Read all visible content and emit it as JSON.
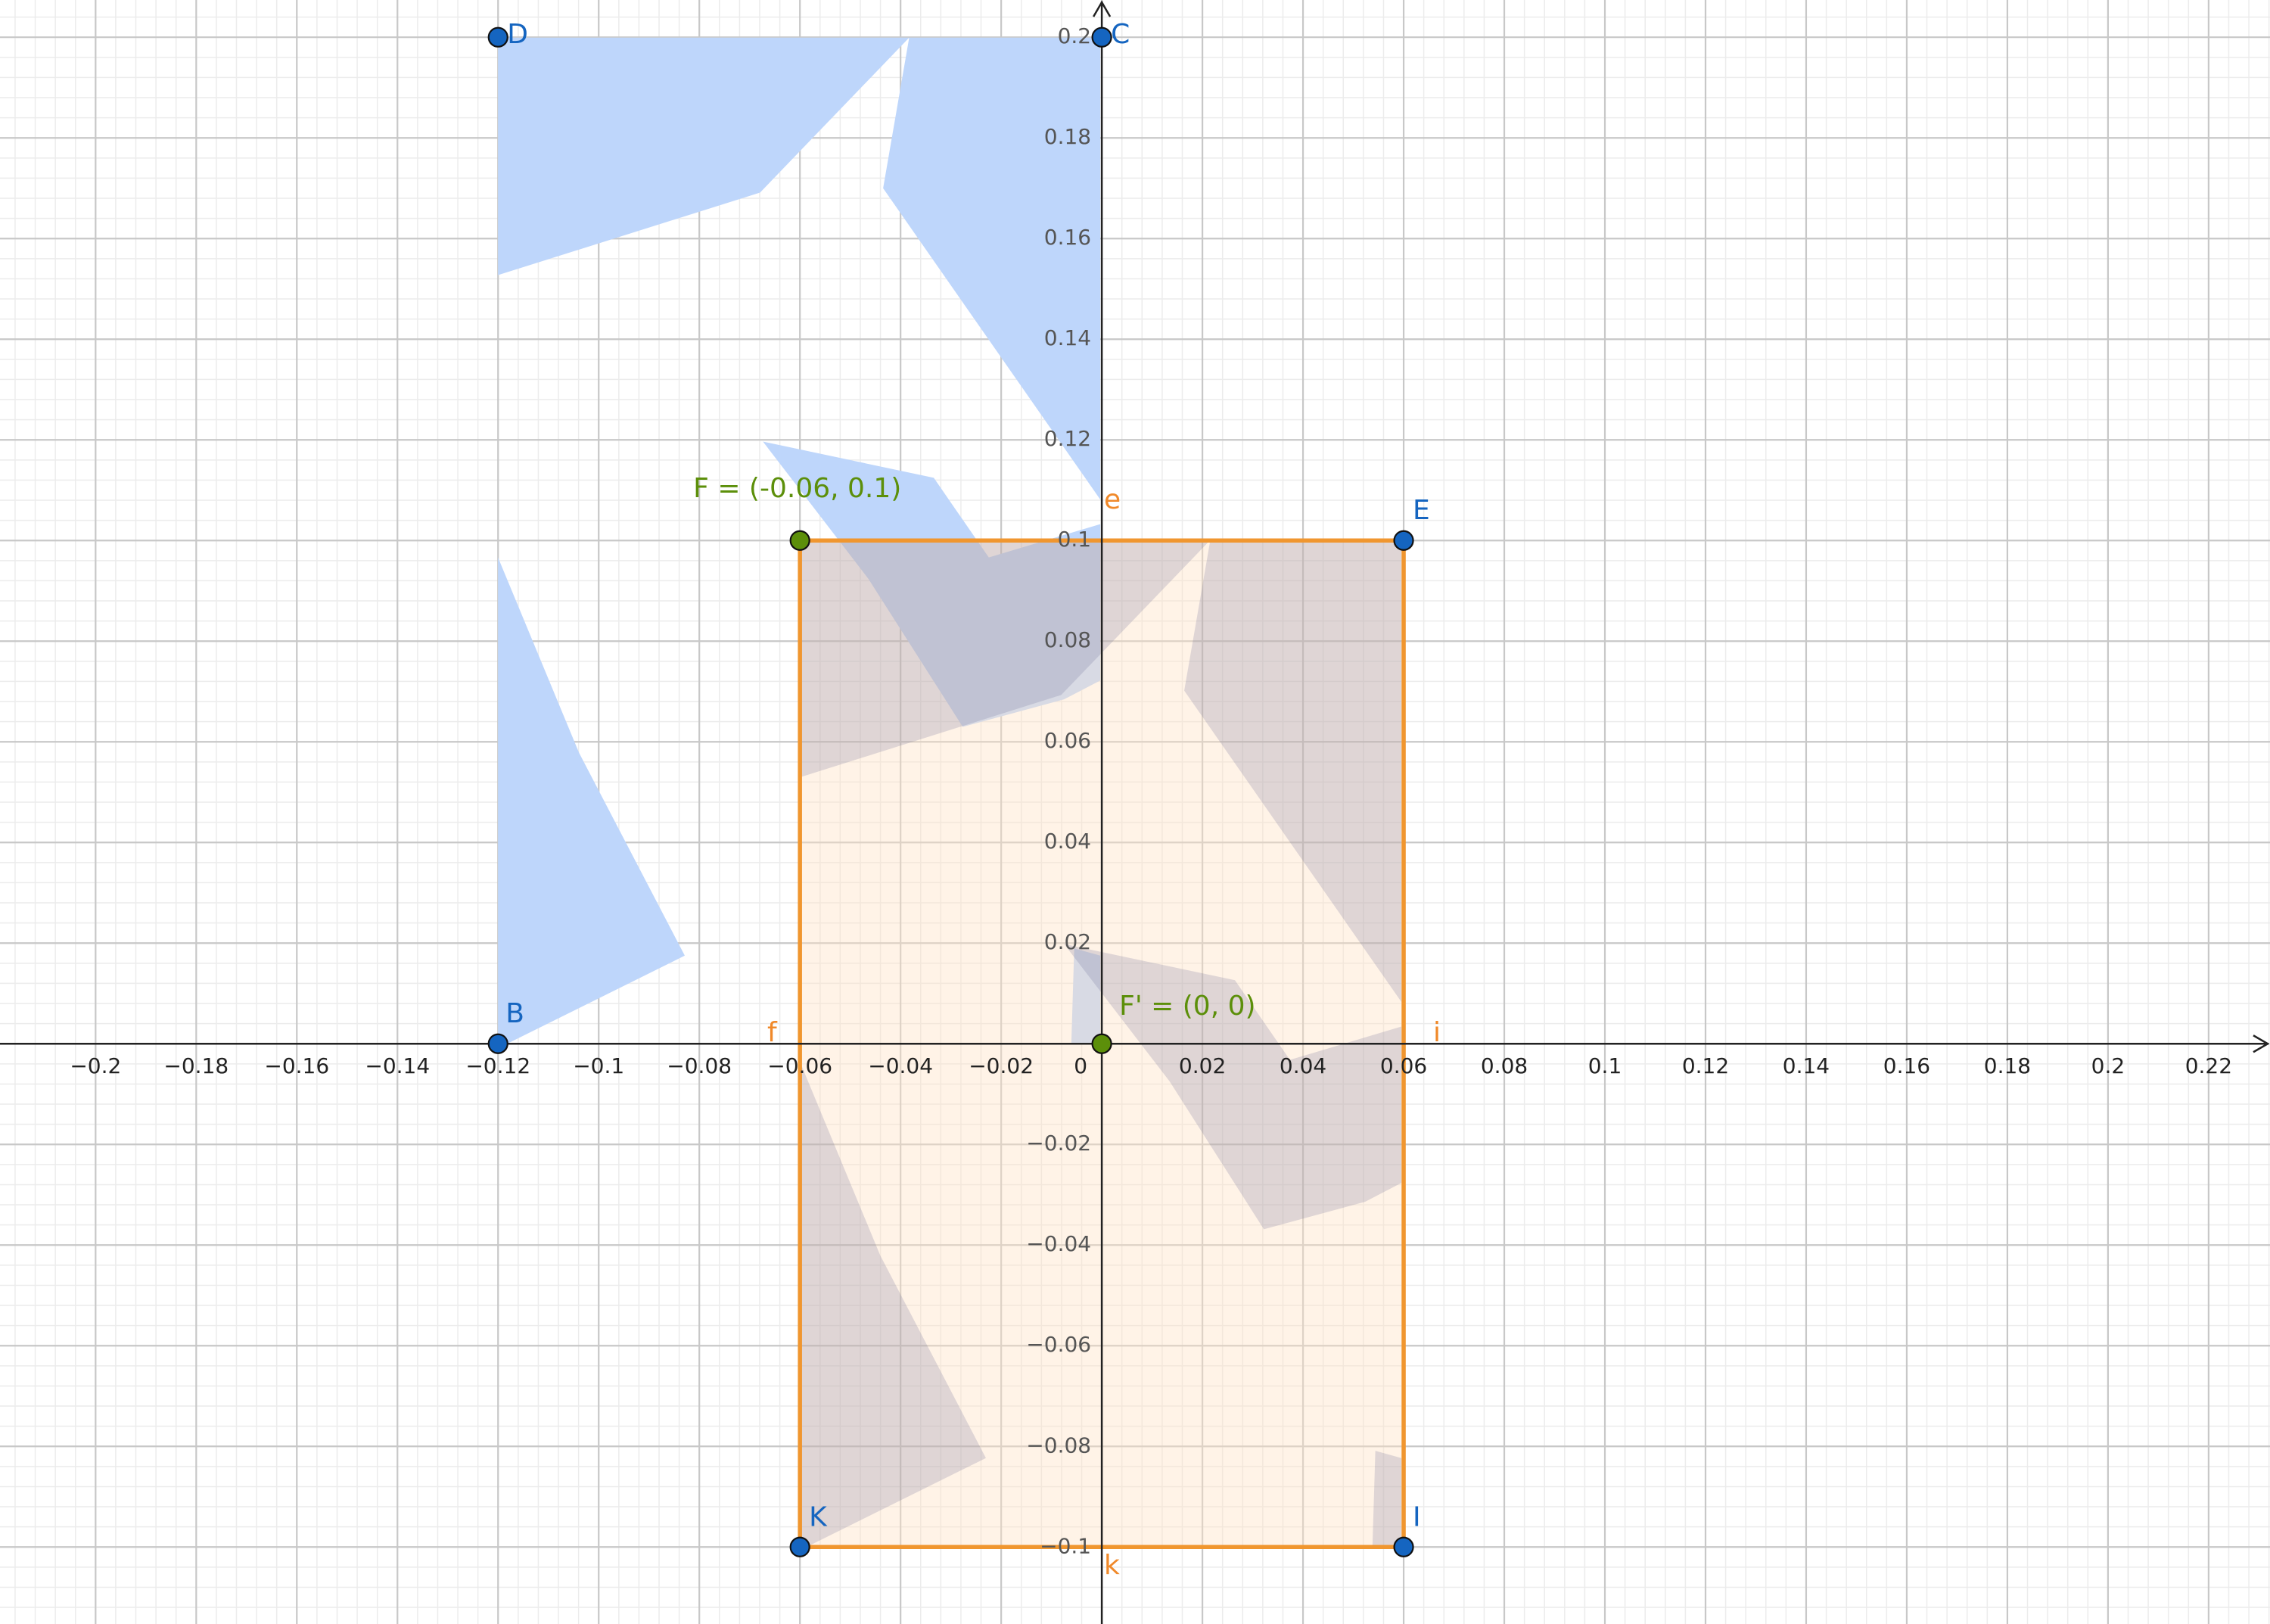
{
  "axes": {
    "xlim": [
      -0.219,
      0.2322
    ],
    "ylim": [
      -0.1153,
      0.2074
    ],
    "xticks": [
      {
        "value": -0.2,
        "label": "−0.2"
      },
      {
        "value": -0.18,
        "label": "−0.18"
      },
      {
        "value": -0.16,
        "label": "−0.16"
      },
      {
        "value": -0.14,
        "label": "−0.14"
      },
      {
        "value": -0.12,
        "label": "−0.12"
      },
      {
        "value": -0.1,
        "label": "−0.1"
      },
      {
        "value": -0.08,
        "label": "−0.08"
      },
      {
        "value": -0.06,
        "label": "−0.06"
      },
      {
        "value": -0.04,
        "label": "−0.04"
      },
      {
        "value": -0.02,
        "label": "−0.02"
      },
      0,
      0.02,
      0.04,
      0.06,
      0.08,
      0.1,
      0.12,
      0.14,
      0.16,
      0.18,
      0.2,
      0.22
    ],
    "yticks": [
      {
        "value": -0.1,
        "label": "−0.1"
      },
      {
        "value": -0.08,
        "label": "−0.08"
      },
      {
        "value": -0.06,
        "label": "−0.06"
      },
      {
        "value": -0.04,
        "label": "−0.04"
      },
      {
        "value": -0.02,
        "label": "−0.02"
      },
      0.02,
      0.04,
      0.06,
      0.08,
      0.1,
      0.12,
      0.14,
      0.16,
      0.18,
      0.2
    ],
    "grid": true
  },
  "points": [
    {
      "label": "D",
      "x": -0.12,
      "y": 0.2,
      "color": "#1565c0"
    },
    {
      "label": "C",
      "x": 0,
      "y": 0.2,
      "color": "#1565c0"
    },
    {
      "label": "B",
      "x": -0.12,
      "y": 0,
      "color": "#1565c0"
    },
    {
      "label": "E",
      "x": 0.06,
      "y": 0.1,
      "color": "#1565c0"
    },
    {
      "label": "F = (-0.06, 0.1)",
      "x": -0.06,
      "y": 0.1,
      "color": "#5c8f0a"
    },
    {
      "label": "F' = (0, 0)",
      "x": 0,
      "y": 0,
      "color": "#5c8f0a"
    },
    {
      "label": "K",
      "x": -0.06,
      "y": -0.1,
      "color": "#1565c0"
    },
    {
      "label": "I",
      "x": 0.06,
      "y": -0.1,
      "color": "#1565c0"
    }
  ],
  "segments": [
    {
      "label": "e"
    },
    {
      "label": "f"
    },
    {
      "label": "i"
    },
    {
      "label": "k"
    }
  ]
}
